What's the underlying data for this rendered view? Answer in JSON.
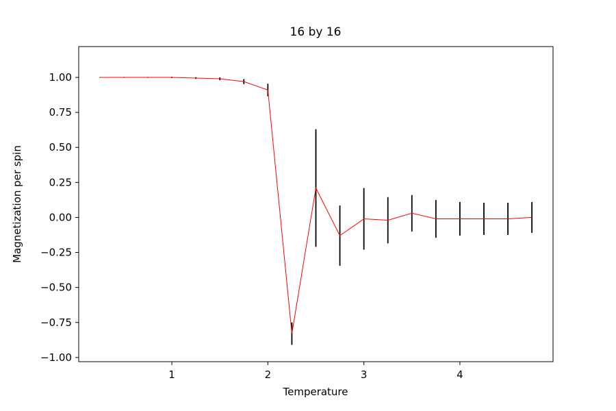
{
  "figure": {
    "background": "#ffffff"
  },
  "chart_data": {
    "type": "line",
    "title": "16 by 16",
    "xlabel": "Temperature",
    "ylabel": "Magnetization per spin",
    "legend": "none",
    "grid": false,
    "line_color": "#ff0000",
    "errorbar_color": "#000000",
    "xlim": [
      0.03,
      4.97
    ],
    "ylim": [
      -1.03,
      1.22
    ],
    "xticks": [
      1,
      2,
      3,
      4
    ],
    "xtick_labels": [
      "1",
      "2",
      "3",
      "4"
    ],
    "yticks": [
      -1.0,
      -0.75,
      -0.5,
      -0.25,
      0.0,
      0.25,
      0.5,
      0.75,
      1.0
    ],
    "ytick_labels": [
      "−1.00",
      "−0.75",
      "−0.50",
      "−0.25",
      "0.00",
      "0.25",
      "0.50",
      "0.75",
      "1.00"
    ],
    "series": [
      {
        "name": "magnetization",
        "x": [
          0.25,
          0.5,
          0.75,
          1.0,
          1.25,
          1.5,
          1.75,
          2.0,
          2.25,
          2.5,
          2.75,
          3.0,
          3.25,
          3.5,
          3.75,
          4.0,
          4.25,
          4.5,
          4.75
        ],
        "y": [
          1.0,
          1.0,
          1.0,
          1.0,
          0.995,
          0.99,
          0.97,
          0.91,
          -0.83,
          0.21,
          -0.13,
          -0.01,
          -0.02,
          0.03,
          -0.01,
          -0.01,
          -0.01,
          -0.01,
          0.0
        ],
        "yerr": [
          0.002,
          0.003,
          0.003,
          0.004,
          0.006,
          0.01,
          0.018,
          0.045,
          0.08,
          0.42,
          0.215,
          0.22,
          0.165,
          0.13,
          0.135,
          0.12,
          0.115,
          0.115,
          0.11
        ]
      }
    ]
  }
}
